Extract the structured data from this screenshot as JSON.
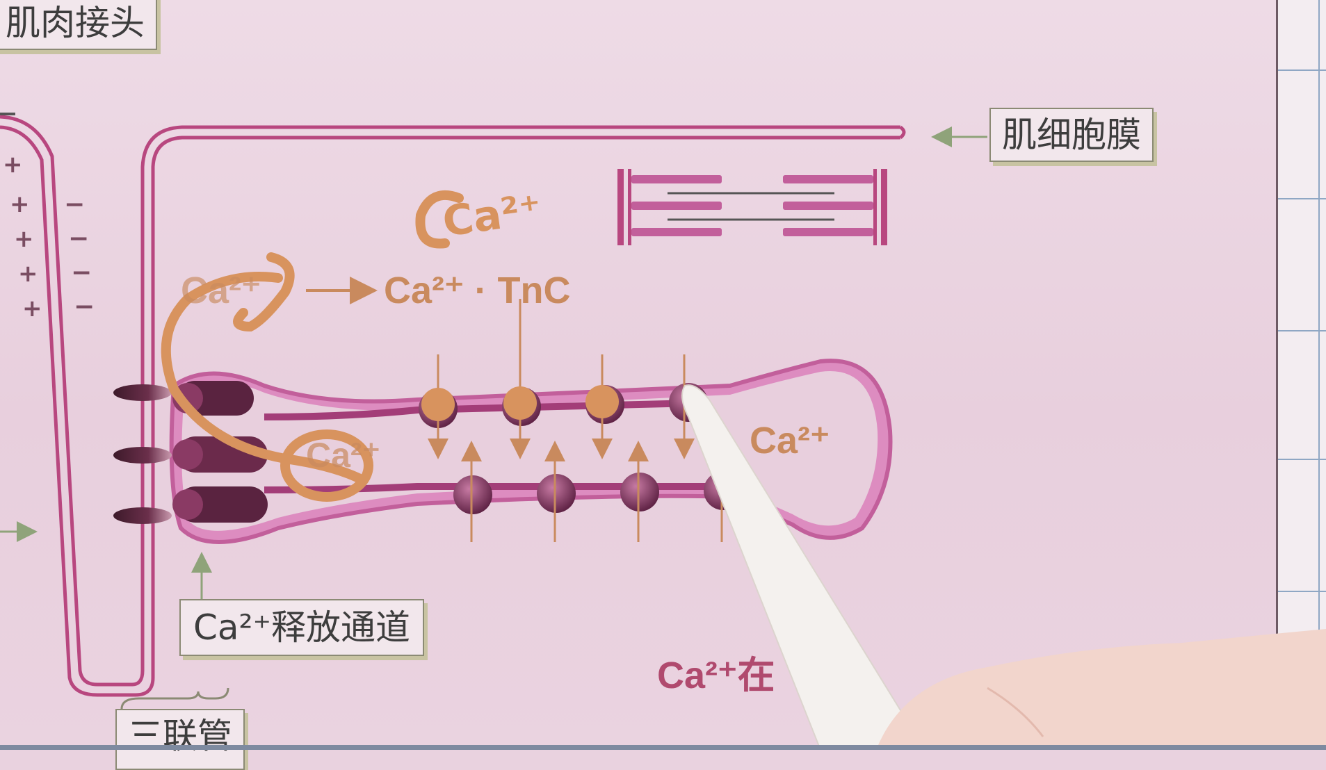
{
  "labels": {
    "nmj": "肌肉接头",
    "sarcolemma": "肌细胞膜",
    "release_channel": "Ca²⁺释放通道",
    "triad": "三联管",
    "ca_tnc": "Ca²⁺ · TnC",
    "ca_left": "Ca²⁺",
    "ca_inner": "Ca²⁺",
    "ca_right": "Ca²⁺",
    "ca_bottom": "Ca²⁺在",
    "handwritten_ca": "Ca²⁺"
  },
  "membrane_signs": {
    "plus": [
      "+",
      "+",
      "+",
      "+",
      "+"
    ],
    "minus": [
      "−",
      "−",
      "−",
      "−",
      "−"
    ]
  },
  "colors": {
    "membrane": "#b8477f",
    "sr_fill": "#d77ab3",
    "pump": "#7b2a57",
    "handwriting": "#d8935e",
    "arrow": "#c98a5e"
  }
}
